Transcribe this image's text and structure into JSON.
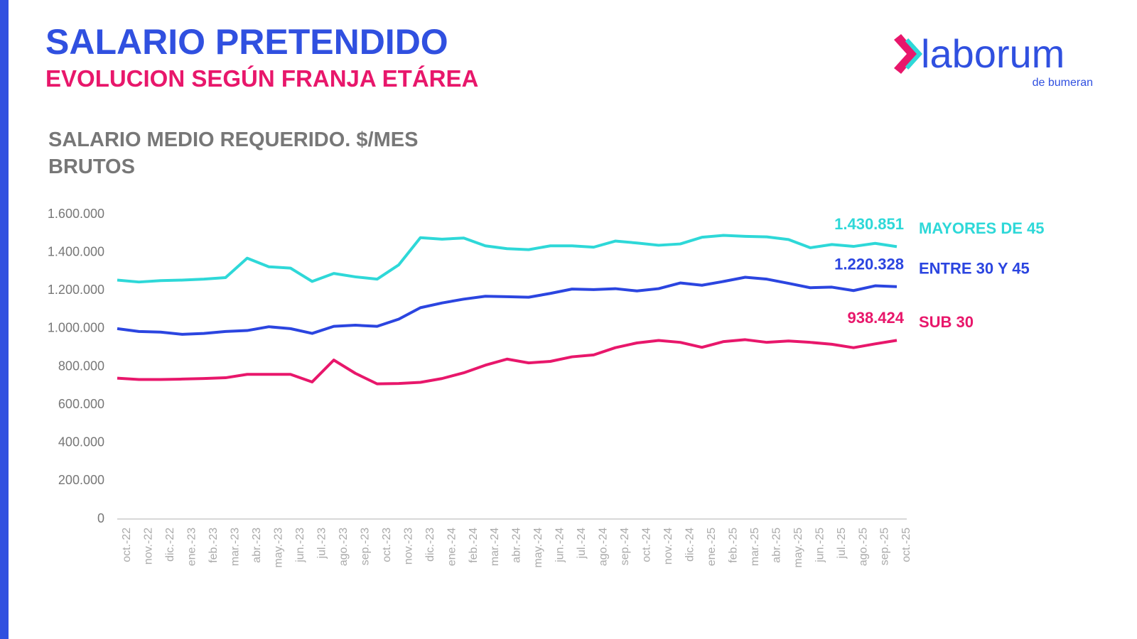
{
  "header": {
    "title": "SALARIO PRETENDIDO",
    "subtitle": "EVOLUCION SEGÚN FRANJA ETÁREA"
  },
  "logo": {
    "name": "laborum",
    "tagline": "de bumeran"
  },
  "chart_data": {
    "type": "line",
    "title": "SALARIO MEDIO REQUERIDO. $/MES BRUTOS",
    "categories": [
      "oct.-22",
      "nov.-22",
      "dic.-22",
      "ene.-23",
      "feb.-23",
      "mar.-23",
      "abr.-23",
      "may.-23",
      "jun.-23",
      "jul.-23",
      "ago.-23",
      "sep.-23",
      "oct.-23",
      "nov.-23",
      "dic.-23",
      "ene.-24",
      "feb.-24",
      "mar.-24",
      "abr.-24",
      "may.-24",
      "jun.-24",
      "jul.-24",
      "ago.-24",
      "sep.-24",
      "oct.-24",
      "nov.-24",
      "dic.-24",
      "ene.-25",
      "feb.-25",
      "mar.-25",
      "abr.-25",
      "may.-25",
      "jun.-25",
      "jul.-25",
      "ago.-25",
      "sep.-25",
      "oct.-25"
    ],
    "series": [
      {
        "name": "MAYORES DE 45",
        "color": "#2ed8d8",
        "values": [
          1255000,
          1245000,
          1252000,
          1255000,
          1260000,
          1268000,
          1370000,
          1325000,
          1318000,
          1248000,
          1290000,
          1272000,
          1260000,
          1335000,
          1478000,
          1470000,
          1476000,
          1435000,
          1420000,
          1415000,
          1435000,
          1435000,
          1428000,
          1460000,
          1450000,
          1438000,
          1445000,
          1480000,
          1490000,
          1485000,
          1482000,
          1468000,
          1425000,
          1442000,
          1432000,
          1448000,
          1430851
        ],
        "value_labels": [
          null,
          null,
          null,
          null,
          null,
          null,
          null,
          null,
          null,
          null,
          null,
          null,
          null,
          null,
          null,
          null,
          null,
          null,
          null,
          null,
          null,
          null,
          null,
          null,
          null,
          null,
          null,
          null,
          null,
          null,
          null,
          null,
          null,
          null,
          null,
          null,
          "1.430.851"
        ]
      },
      {
        "name": "ENTRE 30 Y 45",
        "color": "#2b45e0",
        "values": [
          1000000,
          985000,
          982000,
          970000,
          975000,
          985000,
          990000,
          1010000,
          1000000,
          975000,
          1012000,
          1018000,
          1012000,
          1050000,
          1110000,
          1135000,
          1155000,
          1170000,
          1168000,
          1165000,
          1185000,
          1208000,
          1205000,
          1210000,
          1198000,
          1210000,
          1240000,
          1228000,
          1248000,
          1270000,
          1260000,
          1238000,
          1215000,
          1218000,
          1200000,
          1225000,
          1220328
        ],
        "value_labels": [
          null,
          null,
          null,
          null,
          null,
          null,
          null,
          null,
          null,
          null,
          null,
          null,
          null,
          null,
          null,
          null,
          null,
          null,
          null,
          null,
          null,
          null,
          null,
          null,
          null,
          null,
          null,
          null,
          null,
          null,
          null,
          null,
          null,
          null,
          null,
          null,
          "1.220.328"
        ]
      },
      {
        "name": "SUB 30",
        "color": "#e8176b",
        "values": [
          740000,
          733000,
          733000,
          735000,
          738000,
          742000,
          760000,
          760000,
          760000,
          720000,
          835000,
          765000,
          710000,
          712000,
          718000,
          738000,
          768000,
          808000,
          840000,
          820000,
          828000,
          852000,
          862000,
          900000,
          925000,
          938000,
          928000,
          902000,
          932000,
          942000,
          928000,
          935000,
          928000,
          918000,
          900000,
          920000,
          938424
        ],
        "value_labels": [
          null,
          null,
          null,
          null,
          null,
          null,
          null,
          null,
          null,
          null,
          null,
          null,
          null,
          null,
          null,
          null,
          null,
          null,
          null,
          null,
          null,
          null,
          null,
          null,
          null,
          null,
          null,
          null,
          null,
          null,
          null,
          null,
          null,
          null,
          null,
          null,
          "938.424"
        ]
      }
    ],
    "ylim": [
      0,
      1600000
    ],
    "yticks": [
      0,
      {
        "value": 200000,
        "label": "200.000"
      },
      {
        "value": 400000,
        "label": "400.000"
      },
      {
        "value": 600000,
        "label": "600.000"
      },
      {
        "value": 800000,
        "label": "800.000"
      },
      {
        "value": 1000000,
        "label": "1.000.000"
      },
      {
        "value": 1200000,
        "label": "1.200.000"
      },
      {
        "value": 1400000,
        "label": "1.400.000"
      },
      {
        "value": 1600000,
        "label": "1.600.000"
      }
    ],
    "grid": false
  }
}
